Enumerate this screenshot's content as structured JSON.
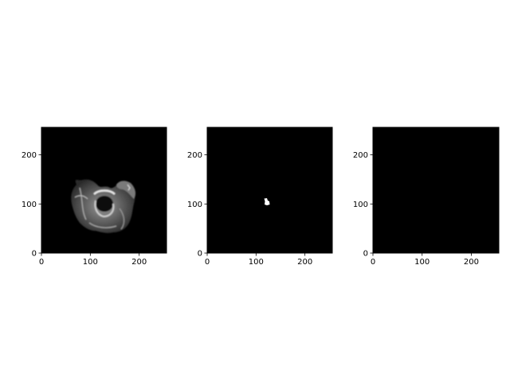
{
  "figure": {
    "background": "#ffffff",
    "panels": [
      {
        "name": "mri-slice",
        "content": "grayscale brain MRI slice",
        "xticks": [
          "0",
          "100",
          "200"
        ],
        "yticks": [
          "0",
          "100",
          "200"
        ]
      },
      {
        "name": "tumor-mask",
        "content": "small white segmentation blob",
        "xticks": [
          "0",
          "100",
          "200"
        ],
        "yticks": [
          "0",
          "100",
          "200"
        ]
      },
      {
        "name": "empty-mask",
        "content": "all black",
        "xticks": [
          "0",
          "100",
          "200"
        ],
        "yticks": [
          "0",
          "100",
          "200"
        ]
      }
    ]
  }
}
